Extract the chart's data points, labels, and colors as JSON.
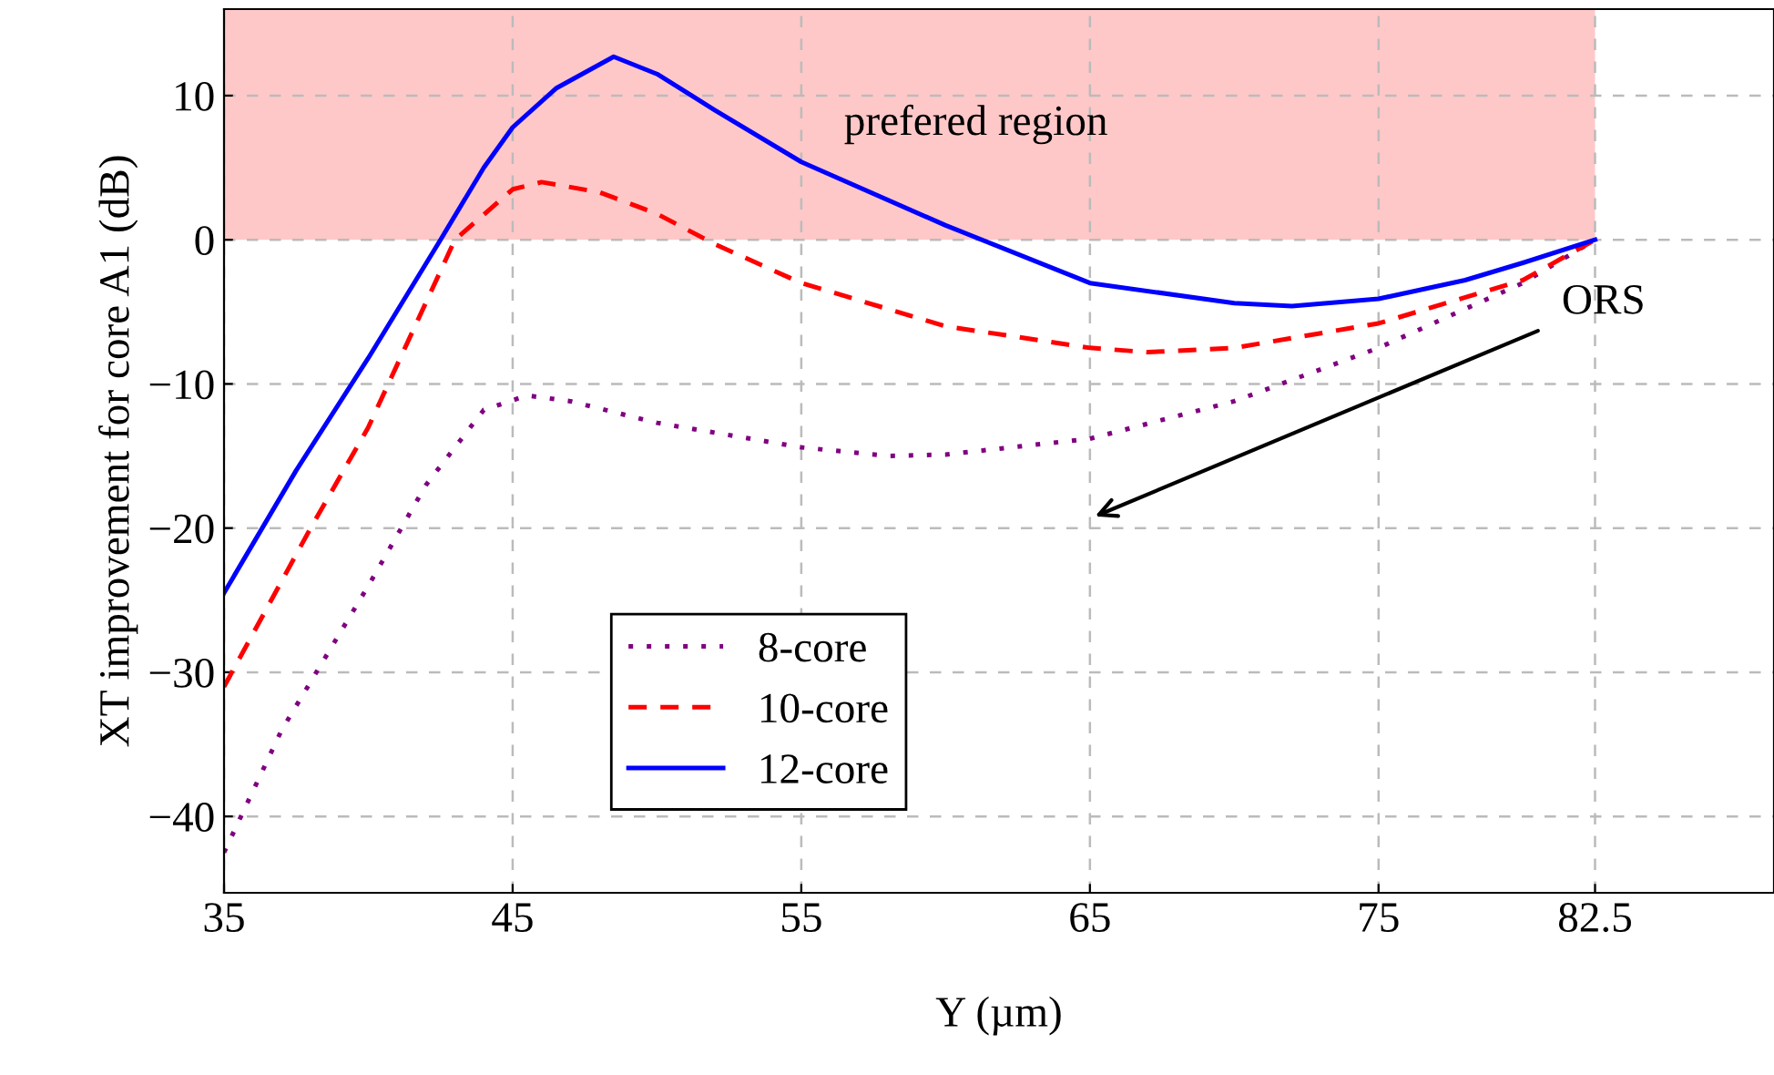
{
  "chart_data": {
    "type": "line",
    "xlabel": "Y (µm)",
    "ylabel": "XT improvement for core A1 (dB)",
    "xlim": [
      35,
      88.7
    ],
    "ylim": [
      -45.3,
      16
    ],
    "xticks": [
      35,
      45,
      55,
      65,
      75,
      82.5
    ],
    "yticks": [
      {
        "value": -40,
        "label": "−40"
      },
      {
        "value": -30,
        "label": "−30"
      },
      {
        "value": -20,
        "label": "−20"
      },
      {
        "value": -10,
        "label": "−10"
      },
      0,
      10
    ],
    "grid": true,
    "legend": "bottom left",
    "bands": [
      {
        "axis": "y",
        "from": 0,
        "to": 16,
        "label": "prefered region",
        "color": "#ffc8c8"
      }
    ],
    "annotations": [
      "ORS"
    ],
    "series": [
      {
        "name": "8-core",
        "color": "#800080",
        "line_style": "dotted",
        "x": [
          35,
          37,
          40,
          42,
          44,
          45.5,
          47,
          50,
          55,
          58,
          60,
          65,
          70,
          75,
          78,
          80,
          82.5
        ],
        "values": [
          -42.5,
          -34,
          -24,
          -17,
          -11.8,
          -10.8,
          -11.2,
          -12.7,
          -14.4,
          -15,
          -14.9,
          -13.8,
          -11.2,
          -7.5,
          -4.8,
          -3,
          0
        ]
      },
      {
        "name": "10-core",
        "color": "#ff0000",
        "line_style": "dashed",
        "x": [
          35,
          38,
          40,
          43,
          45,
          46,
          48,
          50,
          52,
          55,
          60,
          65,
          67,
          70,
          75,
          80,
          82.5
        ],
        "values": [
          -31,
          -20,
          -13,
          0,
          3.5,
          4,
          3.3,
          1.8,
          -0.3,
          -3,
          -6,
          -7.5,
          -7.8,
          -7.5,
          -5.8,
          -2.8,
          0
        ]
      },
      {
        "name": "12-core",
        "color": "#0000ff",
        "line_style": "solid",
        "x": [
          35,
          37.5,
          40,
          42.5,
          44,
          45,
          46.5,
          48.5,
          50,
          52,
          55,
          60,
          65,
          70,
          72,
          75,
          78,
          80,
          82.5
        ],
        "values": [
          -24.5,
          -16,
          -8.2,
          0,
          5,
          7.8,
          10.5,
          12.7,
          11.5,
          9,
          5.4,
          1,
          -3,
          -4.4,
          -4.6,
          -4.1,
          -2.8,
          -1.6,
          0
        ]
      }
    ]
  }
}
